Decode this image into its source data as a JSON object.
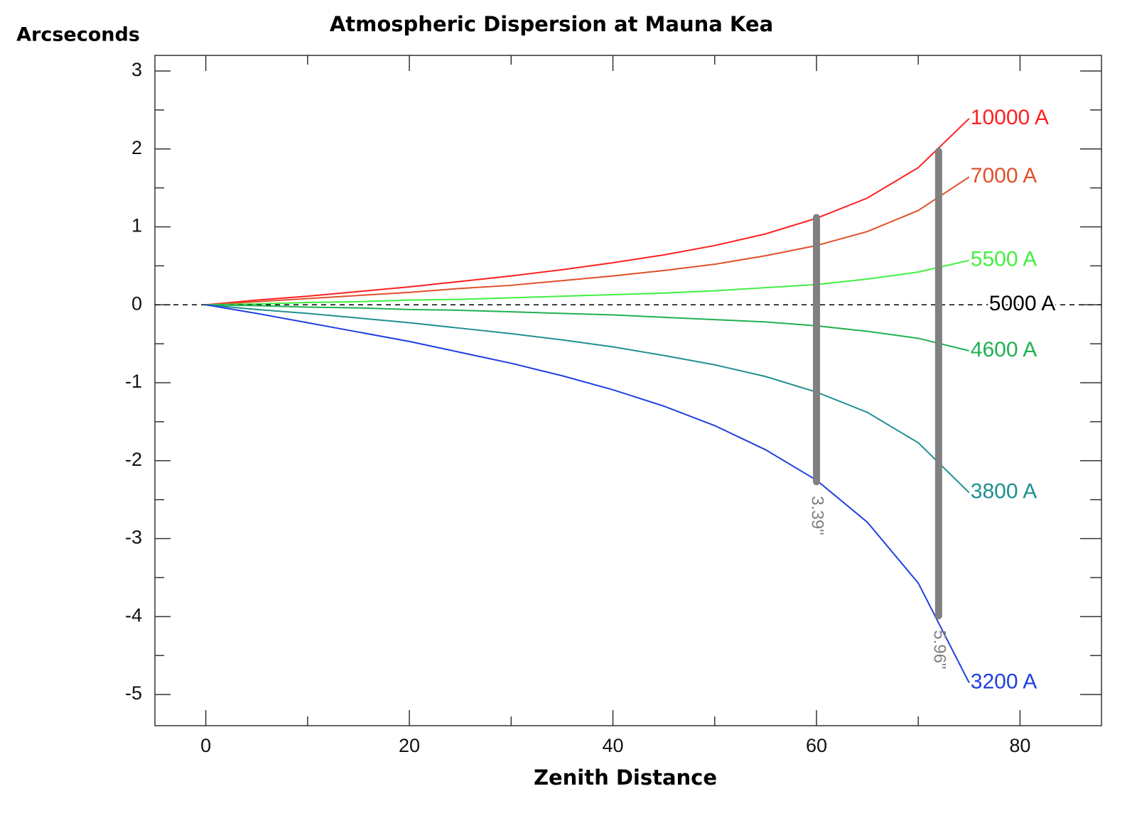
{
  "chart_data": {
    "type": "line",
    "title": "Atmospheric Dispersion at Mauna Kea",
    "y_label": "Arcseconds",
    "x_label": "Zenith Distance",
    "xlim": [
      -5,
      88
    ],
    "ylim": [
      -5.4,
      3.2
    ],
    "xticks": [
      0,
      20,
      40,
      60,
      80
    ],
    "xminor_ticks": [
      10,
      30,
      50,
      70
    ],
    "yticks": [
      -5,
      -4,
      -3,
      -2,
      -1,
      0,
      1,
      2,
      3
    ],
    "yminor_ticks": [
      -4.5,
      -3.5,
      -2.5,
      -1.5,
      -0.5,
      0.5,
      1.5,
      2.5
    ],
    "series": [
      {
        "name": "10000 A",
        "color": "#ff2020",
        "dash": false,
        "x": [
          0,
          5,
          10,
          15,
          20,
          25,
          30,
          35,
          40,
          45,
          50,
          55,
          60,
          65,
          70,
          75
        ],
        "values": [
          0,
          0.06,
          0.11,
          0.17,
          0.23,
          0.3,
          0.37,
          0.45,
          0.54,
          0.64,
          0.76,
          0.91,
          1.11,
          1.37,
          1.76,
          2.39
        ]
      },
      {
        "name": "7000 A",
        "color": "#e0502a",
        "dash": false,
        "x": [
          0,
          5,
          10,
          15,
          20,
          25,
          30,
          35,
          40,
          45,
          50,
          55,
          60,
          65,
          70,
          75
        ],
        "values": [
          0,
          0.04,
          0.08,
          0.12,
          0.16,
          0.21,
          0.25,
          0.31,
          0.37,
          0.44,
          0.52,
          0.63,
          0.76,
          0.94,
          1.21,
          1.64
        ]
      },
      {
        "name": "5500 A",
        "color": "#40f040",
        "dash": false,
        "x": [
          0,
          5,
          10,
          15,
          20,
          25,
          30,
          35,
          40,
          45,
          50,
          55,
          60,
          65,
          70,
          75
        ],
        "values": [
          0,
          0.01,
          0.03,
          0.04,
          0.06,
          0.07,
          0.09,
          0.11,
          0.13,
          0.15,
          0.18,
          0.22,
          0.26,
          0.33,
          0.42,
          0.57
        ]
      },
      {
        "name": "5000 A",
        "color": "#000000",
        "dash": true,
        "x": [
          -5,
          88
        ],
        "values": [
          0,
          0
        ]
      },
      {
        "name": "4600 A",
        "color": "#20b050",
        "dash": false,
        "x": [
          0,
          5,
          10,
          15,
          20,
          25,
          30,
          35,
          40,
          45,
          50,
          55,
          60,
          65,
          70,
          75
        ],
        "values": [
          0,
          -0.01,
          -0.03,
          -0.04,
          -0.06,
          -0.07,
          -0.09,
          -0.11,
          -0.13,
          -0.16,
          -0.19,
          -0.22,
          -0.27,
          -0.34,
          -0.43,
          -0.59
        ]
      },
      {
        "name": "3800 A",
        "color": "#209090",
        "dash": false,
        "x": [
          0,
          5,
          10,
          15,
          20,
          25,
          30,
          35,
          40,
          45,
          50,
          55,
          60,
          65,
          70,
          75
        ],
        "values": [
          0,
          -0.06,
          -0.11,
          -0.17,
          -0.23,
          -0.3,
          -0.37,
          -0.45,
          -0.54,
          -0.65,
          -0.77,
          -0.92,
          -1.12,
          -1.38,
          -1.77,
          -2.41
        ]
      },
      {
        "name": "3200 A",
        "color": "#2040e0",
        "dash": false,
        "x": [
          0,
          5,
          10,
          15,
          20,
          25,
          30,
          35,
          40,
          45,
          50,
          55,
          60,
          65,
          70,
          75
        ],
        "values": [
          0,
          -0.11,
          -0.23,
          -0.35,
          -0.47,
          -0.61,
          -0.75,
          -0.91,
          -1.09,
          -1.3,
          -1.55,
          -1.86,
          -2.25,
          -2.79,
          -3.57,
          -4.85
        ]
      }
    ],
    "ranges": [
      {
        "x": 60,
        "low": -2.27,
        "high": 1.12,
        "label": "3.39\"",
        "color": "#808080"
      },
      {
        "x": 72,
        "low": -3.99,
        "high": 1.97,
        "label": "5.96\"",
        "color": "#808080"
      }
    ]
  }
}
